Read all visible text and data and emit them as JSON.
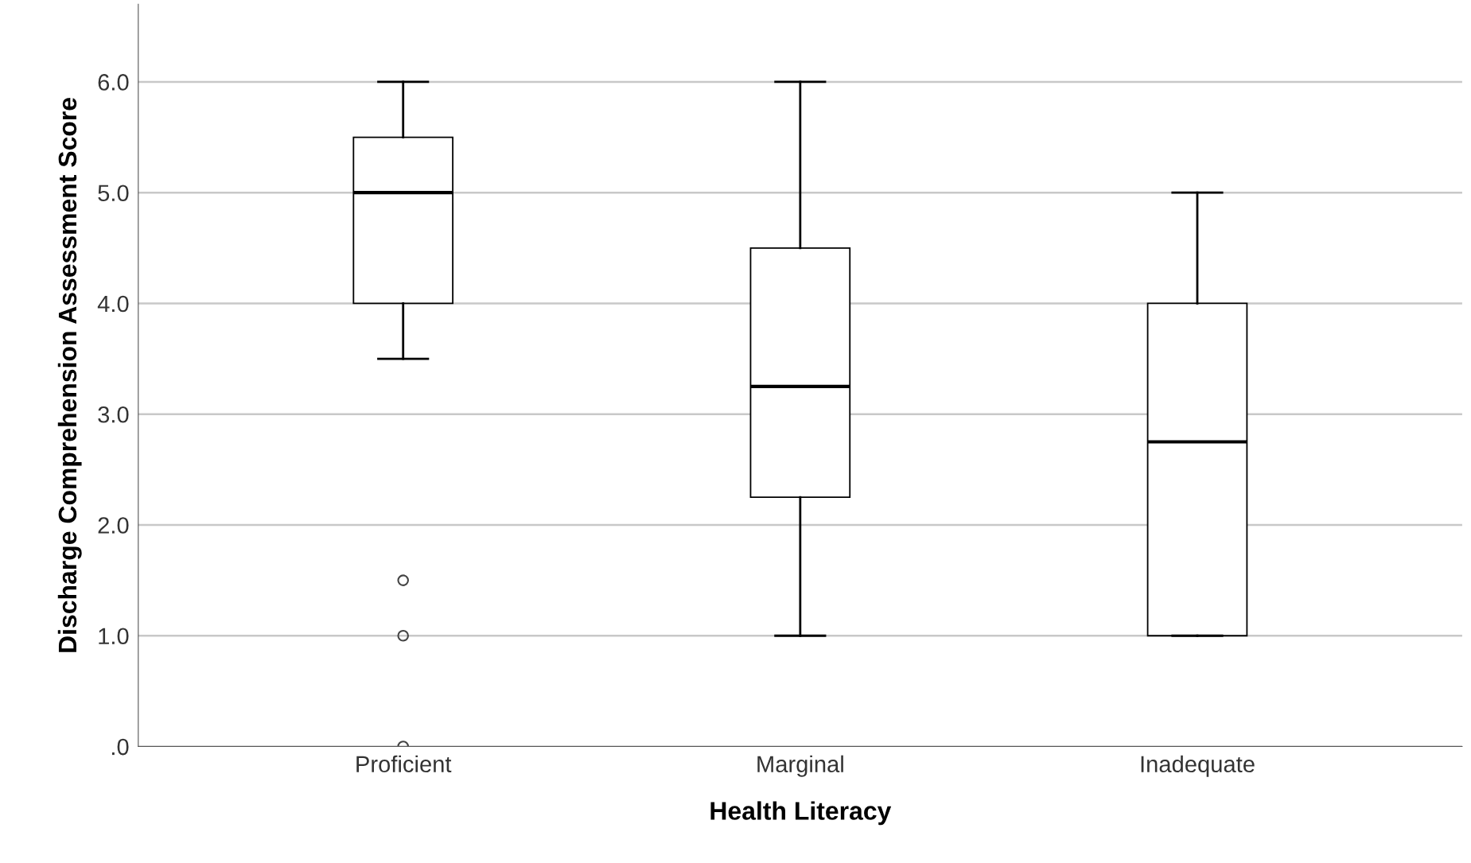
{
  "chart_data": {
    "type": "box",
    "xlabel": "Health Literacy",
    "ylabel": "Discharge Comprehension Assessment Score",
    "categories": [
      "Proficient",
      "Marginal",
      "Inadequate"
    ],
    "boxes": [
      {
        "low": 3.5,
        "q1": 4.0,
        "median": 5.0,
        "q3": 5.5,
        "high": 6.0,
        "outliers": [
          1.5,
          1.0,
          0.0
        ]
      },
      {
        "low": 1.0,
        "q1": 2.25,
        "median": 3.25,
        "q3": 4.5,
        "high": 6.0
      },
      {
        "low": 1.0,
        "q1": 1.0,
        "median": 2.75,
        "q3": 4.0,
        "high": 5.0
      }
    ],
    "ylim": [
      0,
      6.7
    ],
    "yticks": [
      {
        "value": 0,
        "label": ".0"
      },
      {
        "value": 1,
        "label": "1.0"
      },
      {
        "value": 2,
        "label": "2.0"
      },
      {
        "value": 3,
        "label": "3.0"
      },
      {
        "value": 4,
        "label": "4.0"
      },
      {
        "value": 5,
        "label": "5.0"
      },
      {
        "value": 6,
        "label": "6.0"
      }
    ],
    "grid": "y",
    "marker": "circle",
    "color": "#ffffff"
  }
}
